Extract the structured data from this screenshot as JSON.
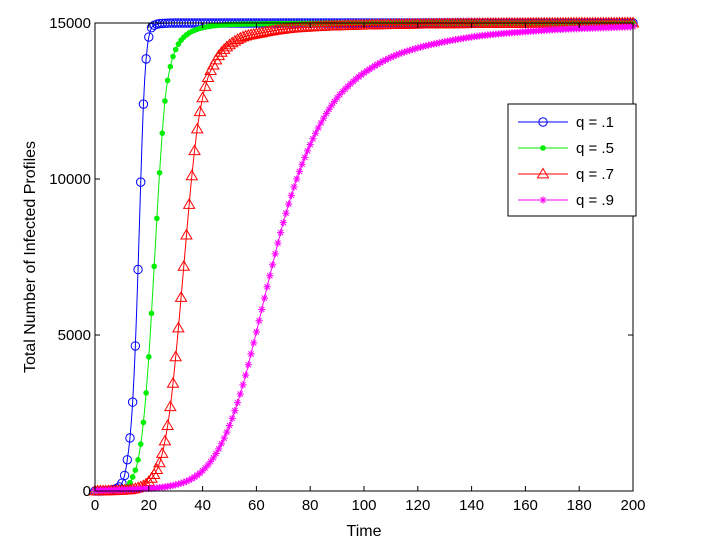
{
  "chart_data": {
    "type": "line",
    "title": "",
    "xlabel": "Time",
    "ylabel": "Total Number of Infected Profiles",
    "xlim": [
      0,
      200
    ],
    "ylim": [
      0,
      15000
    ],
    "xticks": [
      "0",
      "20",
      "40",
      "60",
      "80",
      "100",
      "120",
      "140",
      "160",
      "180",
      "200"
    ],
    "yticks": [
      "0",
      "5000",
      "10000",
      "15000"
    ],
    "grid": false,
    "legend_position": "top-right",
    "series": [
      {
        "name": "q = .1",
        "color": "#0000ff",
        "marker": "circle",
        "x": [
          0,
          2,
          4,
          6,
          8,
          9,
          10,
          11,
          12,
          13,
          14,
          15,
          16,
          17,
          18,
          19,
          20,
          21,
          22,
          23,
          24,
          26,
          30,
          40,
          60,
          100,
          150,
          200
        ],
        "y": [
          0,
          0,
          10,
          30,
          80,
          130,
          250,
          500,
          1000,
          1700,
          2850,
          4650,
          7100,
          9900,
          12400,
          13850,
          14550,
          14850,
          14930,
          14960,
          14980,
          14990,
          15000,
          15000,
          15000,
          15000,
          15000,
          15000
        ]
      },
      {
        "name": "q = .5",
        "color": "#00ee00",
        "marker": "dot",
        "x": [
          0,
          5,
          10,
          12,
          14,
          16,
          18,
          20,
          22,
          24,
          26,
          28,
          30,
          32,
          34,
          36,
          38,
          40,
          45,
          50,
          60,
          80,
          100,
          150,
          200
        ],
        "y": [
          0,
          10,
          60,
          150,
          450,
          1000,
          2200,
          4300,
          7200,
          10200,
          12500,
          13600,
          14150,
          14450,
          14620,
          14730,
          14800,
          14850,
          14920,
          14950,
          14970,
          14990,
          15000,
          15000,
          15000
        ]
      },
      {
        "name": "q = .7",
        "color": "#ff0000",
        "marker": "triangle",
        "x": [
          0,
          10,
          16,
          20,
          24,
          26,
          28,
          30,
          32,
          34,
          36,
          38,
          40,
          42,
          44,
          46,
          48,
          50,
          55,
          60,
          70,
          80,
          100,
          120,
          150,
          200
        ],
        "y": [
          0,
          20,
          100,
          300,
          900,
          1600,
          2700,
          4300,
          6200,
          8200,
          10100,
          11600,
          12600,
          13250,
          13650,
          13950,
          14150,
          14300,
          14550,
          14650,
          14800,
          14870,
          14930,
          14960,
          14985,
          15000
        ]
      },
      {
        "name": "q = .9",
        "color": "#ff00ff",
        "marker": "star",
        "x": [
          0,
          10,
          20,
          25,
          30,
          35,
          40,
          45,
          50,
          55,
          60,
          65,
          70,
          75,
          80,
          85,
          90,
          95,
          100,
          110,
          120,
          130,
          140,
          150,
          160,
          170,
          180,
          190,
          200
        ],
        "y": [
          20,
          40,
          80,
          120,
          200,
          350,
          650,
          1200,
          2100,
          3400,
          5100,
          6900,
          8600,
          10000,
          11100,
          11950,
          12600,
          13050,
          13400,
          13900,
          14200,
          14400,
          14550,
          14650,
          14720,
          14780,
          14820,
          14850,
          14880
        ]
      }
    ]
  }
}
